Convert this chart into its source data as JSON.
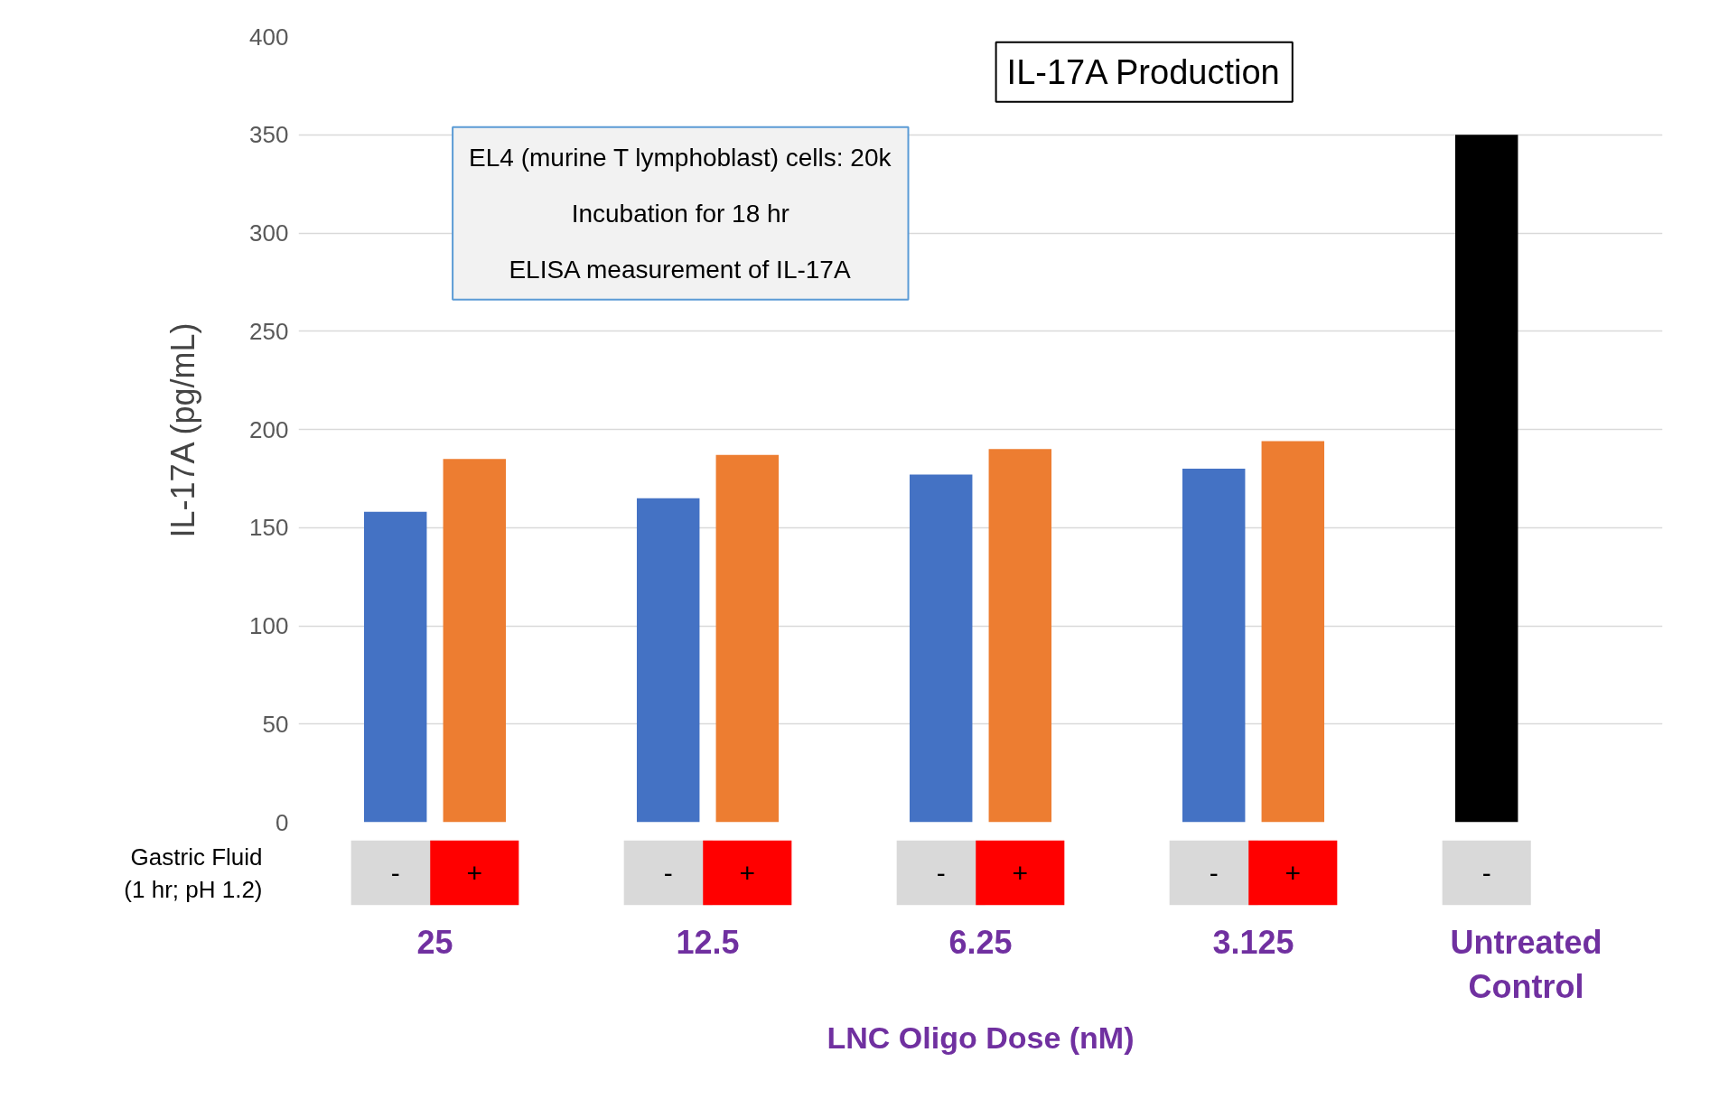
{
  "chart_data": {
    "type": "bar",
    "title": "IL-17A Production",
    "ylabel": "IL-17A (pg/mL)",
    "xlabel": "LNC Oligo Dose (nM)",
    "categories": [
      "25",
      "12.5",
      "6.25",
      "3.125",
      "Untreated Control"
    ],
    "series": [
      {
        "name": "-",
        "colors": [
          "#4472c4",
          "#4472c4",
          "#4472c4",
          "#4472c4",
          "#000000"
        ],
        "values": [
          158,
          165,
          177,
          180,
          350
        ]
      },
      {
        "name": "+",
        "color": "#ed7d31",
        "values": [
          185,
          187,
          190,
          194,
          null
        ]
      }
    ],
    "ylim": [
      0,
      400
    ],
    "yticks": [
      0,
      50,
      100,
      150,
      200,
      250,
      300,
      350,
      400
    ],
    "grid": "y",
    "legend": false,
    "annotations": [
      "EL4 (murine T lymphoblast) cells: 20k",
      "Incubation for 18 hr",
      "ELISA measurement of IL-17A",
      "Gastric Fluid\n(1 hr; pH 1.2)"
    ]
  }
}
